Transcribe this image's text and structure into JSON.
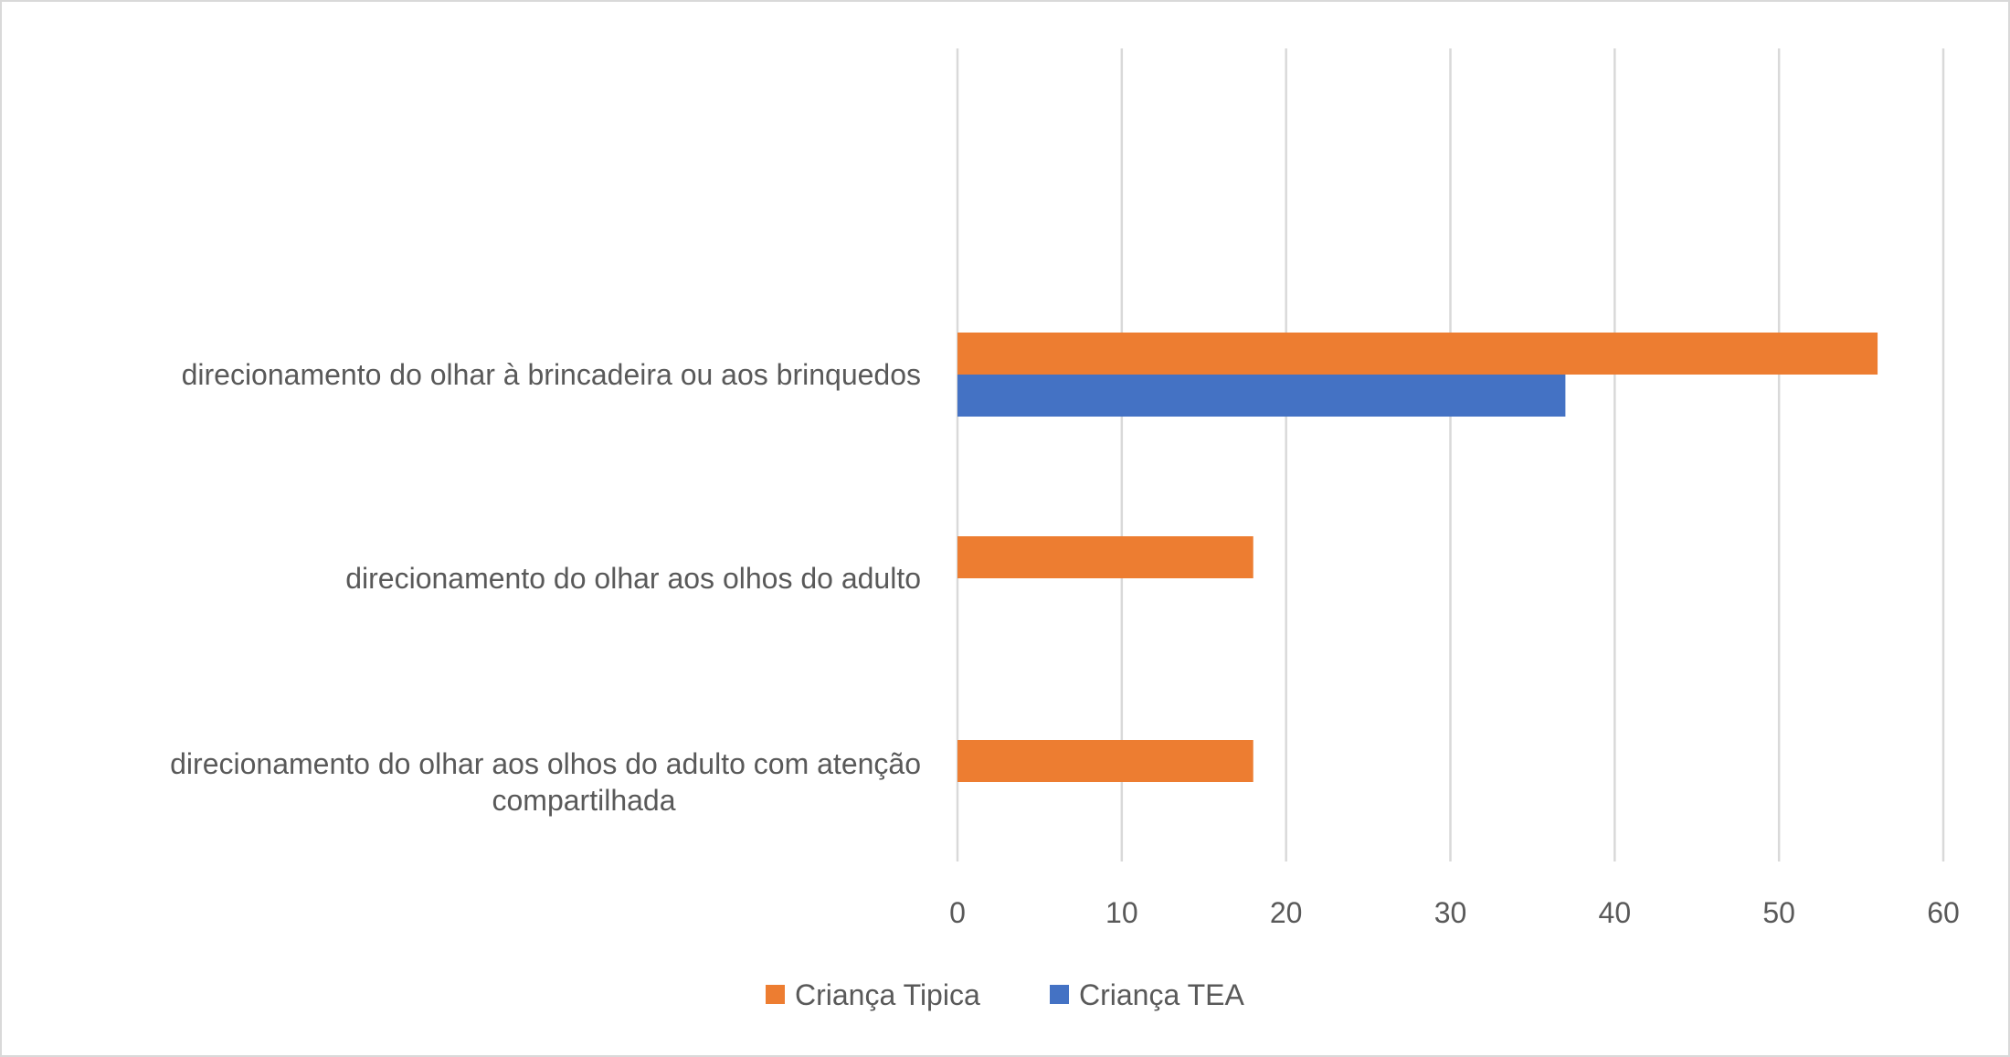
{
  "chart_data": {
    "type": "bar",
    "orientation": "horizontal",
    "categories": [
      "direcionamento do olhar à brincadeira ou aos brinquedos",
      "direcionamento do olhar aos olhos do adulto",
      "direcionamento do olhar aos olhos do adulto com atenção compartilhada"
    ],
    "category_lines": [
      [
        "direcionamento do olhar à brincadeira ou aos brinquedos"
      ],
      [
        "direcionamento do olhar aos olhos do adulto"
      ],
      [
        "direcionamento do olhar aos olhos do adulto com atenção",
        "compartilhada"
      ]
    ],
    "series": [
      {
        "name": "Criança Tipica",
        "color": "#ED7D31",
        "values": [
          56,
          18,
          18
        ]
      },
      {
        "name": "Criança TEA",
        "color": "#4472C4",
        "values": [
          37,
          0,
          0
        ]
      }
    ],
    "xlim": [
      0,
      60
    ],
    "xticks": [
      "0",
      "10",
      "20",
      "30",
      "40",
      "50",
      "60"
    ],
    "grid": true,
    "legend_position": "bottom"
  }
}
